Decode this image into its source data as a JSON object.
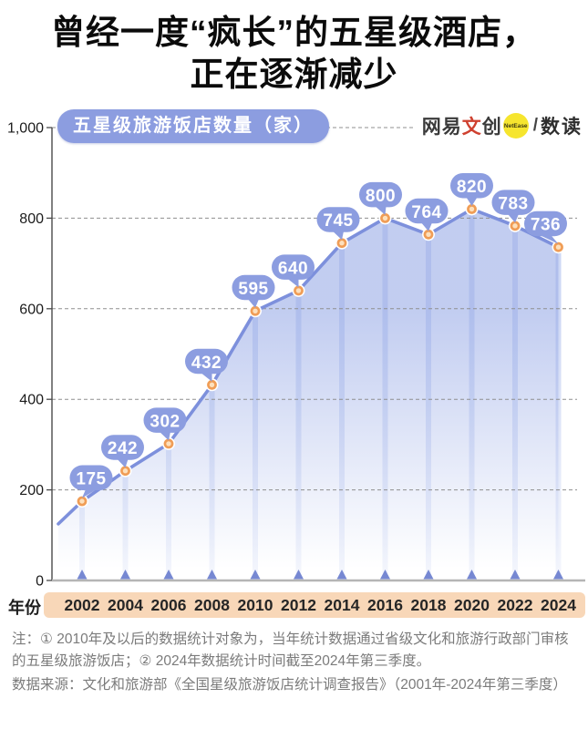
{
  "title": {
    "line1": "曾经一度“疯长”的五星级酒店，",
    "line2": "正在逐渐减少"
  },
  "logo": {
    "brand_dark1": "网易",
    "brand_red": "文",
    "brand_dark2": "创",
    "badge": "NetEase",
    "divider": "/",
    "channel": "数读"
  },
  "chart_data": {
    "type": "area",
    "legend_label": "五星级旅游饭店数量（家）",
    "xlabel": "年份",
    "xlabel_arrow": "▸",
    "categories": [
      "2002",
      "2004",
      "2006",
      "2008",
      "2010",
      "2012",
      "2014",
      "2016",
      "2018",
      "2020",
      "2022",
      "2024"
    ],
    "values": [
      175,
      242,
      302,
      432,
      595,
      640,
      745,
      800,
      764,
      820,
      783,
      736
    ],
    "lead_point_value": 125,
    "ylim": [
      0,
      1000
    ],
    "ytick_values": [
      0,
      200,
      400,
      600,
      800,
      1000
    ],
    "ytick_labels": [
      "0",
      "200",
      "400",
      "600",
      "800",
      "1,000"
    ],
    "grid": "dashed-horizontal",
    "legend_position": "top-left",
    "label_offsets": [
      10,
      -3,
      -4,
      -6,
      -2,
      -6,
      -4,
      -5,
      -2,
      0,
      -2,
      -14
    ],
    "colors": {
      "line": "#7d90dc",
      "bubble": "#8c9de0",
      "area": "#b7c4ee",
      "stripe": "#9db0e9",
      "dot_ring": "#f09d56",
      "dot_fill": "#fde0bc",
      "marker": "#7688d2",
      "grid": "#8f8f8f",
      "year_band": "#f8d7b8"
    }
  },
  "notes": {
    "note": "注：① 2010年及以后的数据统计对象为，当年统计数据通过省级文化和旅游行政部门审核的五星级旅游饭店；② 2024年数据统计时间截至2024年第三季度。",
    "source": "数据来源：文化和旅游部《全国星级旅游饭店统计调查报告》（2001年-2024年第三季度）"
  }
}
